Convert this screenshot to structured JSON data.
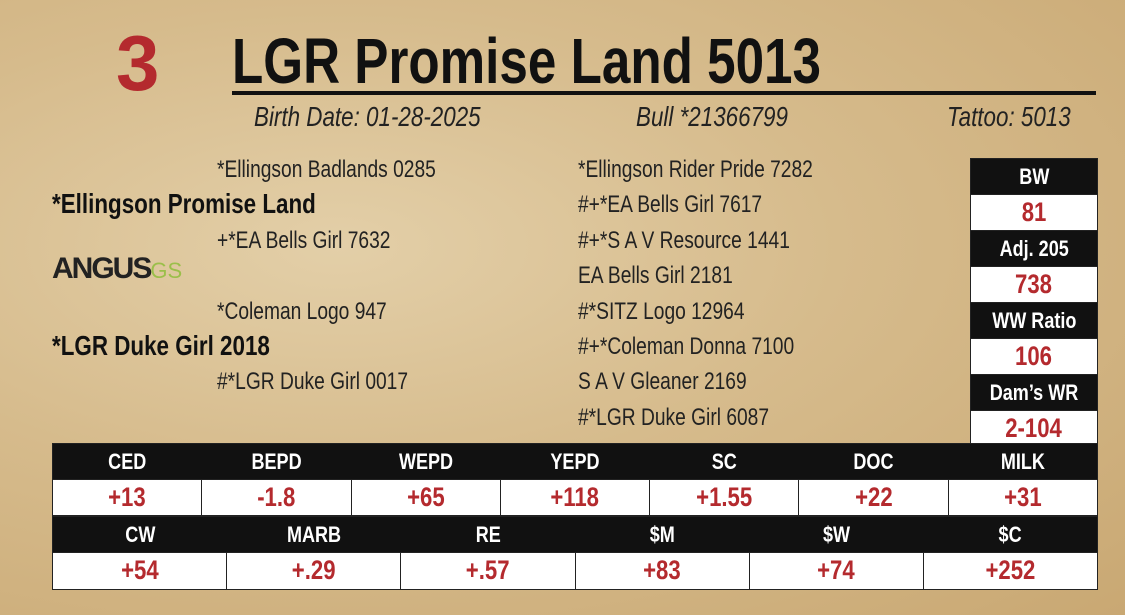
{
  "lot_number": "3",
  "name": "LGR Promise Land 5013",
  "birth_date": "Birth Date: 01-28-2025",
  "registration": "Bull *21366799",
  "tattoo": "Tattoo: 5013",
  "pedigree": {
    "sire_sire": "*Ellingson Badlands 0285",
    "sire": "*Ellingson Promise Land",
    "sire_dam": "+*EA Bells Girl 7632",
    "dam_sire": "*Coleman Logo 947",
    "dam": "*LGR Duke Girl 2018",
    "dam_dam": "#*LGR Duke Girl 0017",
    "third_generation": [
      "*Ellingson Rider Pride 7282",
      "#+*EA Bells Girl 7617",
      "#+*S A V Resource 1441",
      "EA Bells Girl 2181",
      "#*SITZ Logo 12964",
      "#+*Coleman Donna 7100",
      "S A V Gleaner 2169",
      "#*LGR Duke Girl 6087"
    ]
  },
  "logo": {
    "main": "ANGUS",
    "suffix": "GS"
  },
  "performance": [
    {
      "label": "BW",
      "value": "81"
    },
    {
      "label": "Adj. 205",
      "value": "738"
    },
    {
      "label": "WW Ratio",
      "value": "106"
    },
    {
      "label": "Dam’s WR",
      "value": "2-104"
    }
  ],
  "epd_rows": [
    {
      "headers": [
        "CED",
        "BEPD",
        "WEPD",
        "YEPD",
        "SC",
        "DOC",
        "MILK"
      ],
      "values": [
        "+13",
        "-1.8",
        "+65",
        "+118",
        "+1.55",
        "+22",
        "+31"
      ]
    },
    {
      "headers": [
        "CW",
        "MARB",
        "RE",
        "$M",
        "$W",
        "$C"
      ],
      "values": [
        "+54",
        "+.29",
        "+.57",
        "+83",
        "+74",
        "+252"
      ]
    }
  ]
}
